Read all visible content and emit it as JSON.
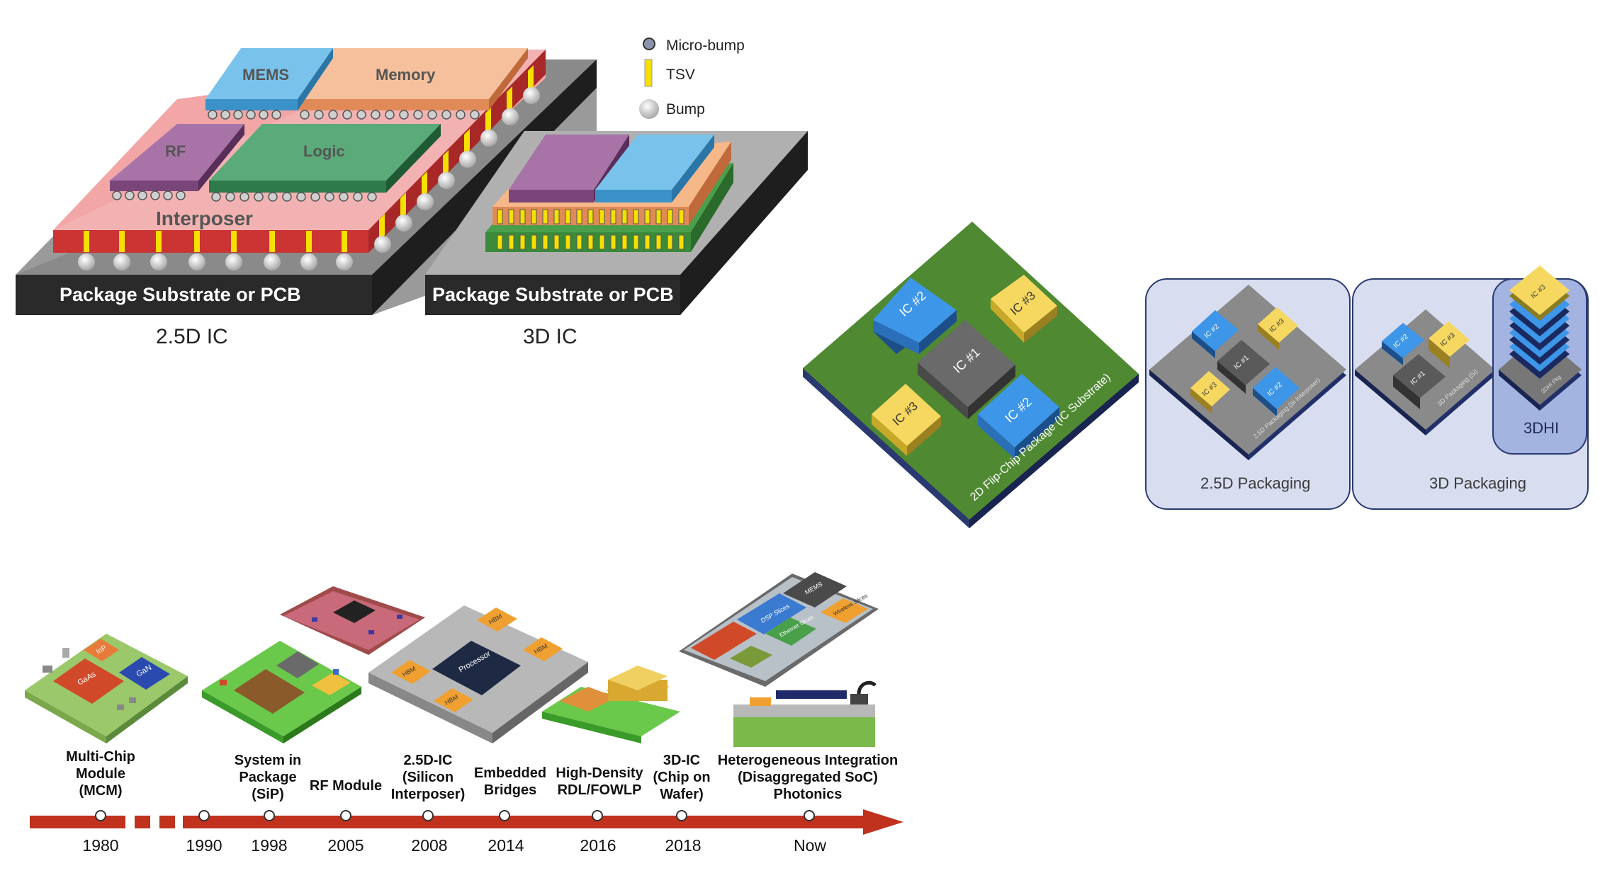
{
  "panel_a": {
    "chips": {
      "mems": "MEMS",
      "memory": "Memory",
      "rf": "RF",
      "logic": "Logic",
      "interposer": "Interposer"
    },
    "substrate_left": "Package Substrate or PCB",
    "substrate_right": "Package Substrate or PCB",
    "caption_left": "2.5D IC",
    "caption_right": "3D IC",
    "legend": [
      {
        "label": "Micro-bump"
      },
      {
        "label": "TSV"
      },
      {
        "label": "Bump"
      }
    ],
    "colors": {
      "mems": "#5aaee0",
      "memory": "#f0a878",
      "rf": "#8c5c8c",
      "logic": "#4a9a6a",
      "interposer": "#f0a0a0",
      "substrate": "#2a2a2a",
      "tsv": "#f5e000"
    }
  },
  "panel_b": {
    "flipchip": {
      "ic1": "IC #1",
      "ic2a": "IC #2",
      "ic2b": "IC #2",
      "ic3a": "IC #3",
      "ic3b": "IC #3",
      "edge_label": "2D Flip-Chip Package (IC Substrate)"
    },
    "pkg25": {
      "ic1": "IC #1",
      "ic2a": "IC #2",
      "ic2b": "IC #2",
      "ic3a": "IC #3",
      "ic3b": "IC #3",
      "edge_label": "2.5D Packaging (Si Interposer)",
      "caption": "2.5D Packaging"
    },
    "pkg3d": {
      "ic1": "IC #1",
      "ic2": "IC #2",
      "ic3": "IC #3",
      "edge_label": "3D Packaging (Si)",
      "caption": "3D Packaging"
    },
    "hi3d": {
      "ic3": "IC #3",
      "edge_label": "3DHI Pkg",
      "caption": "3DHI"
    }
  },
  "panel_c": {
    "milestones": [
      {
        "label": "Multi-Chip Module (MCM)",
        "year": "1980"
      },
      {
        "label": "",
        "year": "1990"
      },
      {
        "label": "System in Package (SiP)",
        "year": "1998"
      },
      {
        "label": "RF Module",
        "year": "2005"
      },
      {
        "label": "2.5D-IC (Silicon Interposer)",
        "year": "2008"
      },
      {
        "label": "Embedded Bridges",
        "year": "2014"
      },
      {
        "label": "High-Density RDL/FOWLP",
        "year": "2016"
      },
      {
        "label": "3D-IC (Chip on Wafer)",
        "year": "2018"
      },
      {
        "label": "Heterogeneous Integration (Disaggregated SoC) Photonics",
        "year": "Now"
      }
    ],
    "tiles": {
      "mcm_a": "InP",
      "mcm_b": "GaAs",
      "mcm_c": "GaN",
      "proc": "Processor",
      "hbm1": "HBM",
      "hbm2": "HBM",
      "hbm3": "HBM",
      "hbm4": "HBM",
      "dsp": "DSP Slices",
      "memsc": "MEMS",
      "ethernet": "Ethernet Slices",
      "wireless": "Wireless Slices"
    },
    "arrow_color": "#c0321e"
  }
}
